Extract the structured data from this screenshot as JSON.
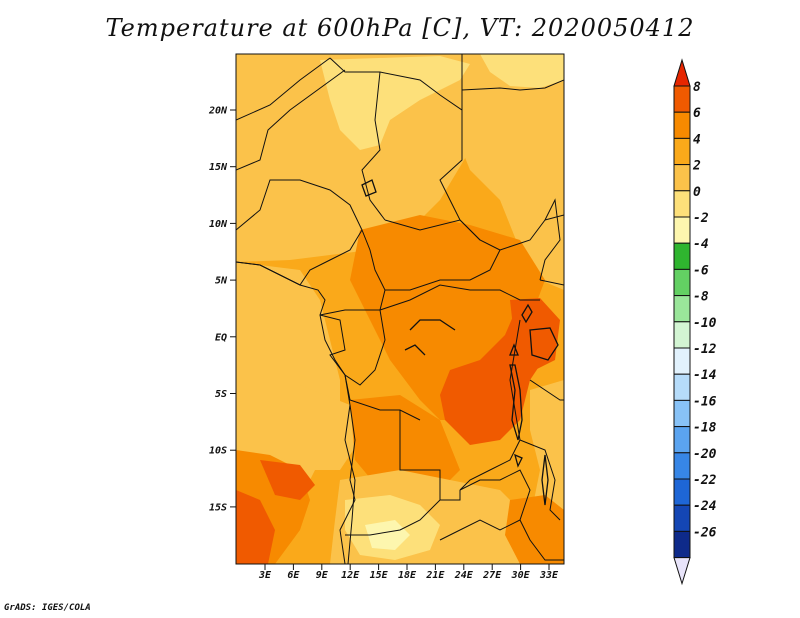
{
  "title": "Temperature at 600hPa [C], VT: 2020050412",
  "footer": "GrADS: IGES/COLA",
  "map": {
    "variable": "Temperature at 600hPa",
    "units": "C",
    "valid_time": "2020050412",
    "lon_labels": [
      "3E",
      "6E",
      "9E",
      "12E",
      "15E",
      "18E",
      "21E",
      "24E",
      "27E",
      "30E",
      "33E"
    ],
    "lat_labels": [
      "20N",
      "15N",
      "10N",
      "5N",
      "EQ",
      "5S",
      "10S",
      "15S"
    ]
  },
  "colorbar": {
    "labels": [
      "8",
      "6",
      "4",
      "2",
      "0",
      "-2",
      "-4",
      "-6",
      "-8",
      "-10",
      "-12",
      "-14",
      "-16",
      "-18",
      "-20",
      "-22",
      "-24",
      "-26"
    ],
    "colors": [
      "#e62600",
      "#f05a00",
      "#f78a00",
      "#faa91a",
      "#fbc24a",
      "#fde07a",
      "#fdf6ae",
      "#2fb52f",
      "#63d063",
      "#9ae69a",
      "#d3f5d3",
      "#e2f2fd",
      "#b6dcfa",
      "#88c2f6",
      "#5ba4f0",
      "#3786e6",
      "#1e66d6",
      "#1446b4",
      "#0e2a8a",
      "#08135a"
    ],
    "top_tip_color": "#e62600",
    "bottom_tip_color": "#e8e4fa"
  },
  "field_colors": {
    "pale": "#fde07a",
    "light": "#fbc24a",
    "medium": "#faa91a",
    "orange": "#f78a00",
    "dark": "#f05a00"
  }
}
